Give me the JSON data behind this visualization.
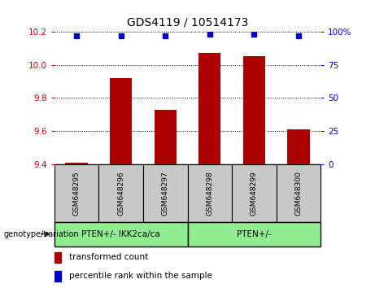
{
  "title": "GDS4119 / 10514173",
  "categories": [
    "GSM648295",
    "GSM648296",
    "GSM648297",
    "GSM648298",
    "GSM648299",
    "GSM648300"
  ],
  "bar_values": [
    9.41,
    9.92,
    9.73,
    10.07,
    10.05,
    9.61
  ],
  "percentile_values": [
    97,
    97,
    97,
    98,
    98,
    97
  ],
  "bar_color": "#aa0000",
  "dot_color": "#0000cc",
  "bar_bottom": 9.4,
  "ylim_left": [
    9.4,
    10.2
  ],
  "ylim_right": [
    0,
    100
  ],
  "yticks_left": [
    9.4,
    9.6,
    9.8,
    10.0,
    10.2
  ],
  "yticks_right": [
    0,
    25,
    50,
    75,
    100
  ],
  "group1_label": "PTEN+/- IKK2ca/ca",
  "group2_label": "PTEN+/-",
  "group1_indices": [
    0,
    1,
    2
  ],
  "group2_indices": [
    3,
    4,
    5
  ],
  "group_color": "#90ee90",
  "left_axis_color": "#cc0000",
  "right_axis_color": "#0000cc",
  "legend_bar_label": "transformed count",
  "legend_dot_label": "percentile rank within the sample",
  "xlabel_area_color": "#c8c8c8",
  "genotype_label": "genotype/variation",
  "bar_width": 0.5
}
